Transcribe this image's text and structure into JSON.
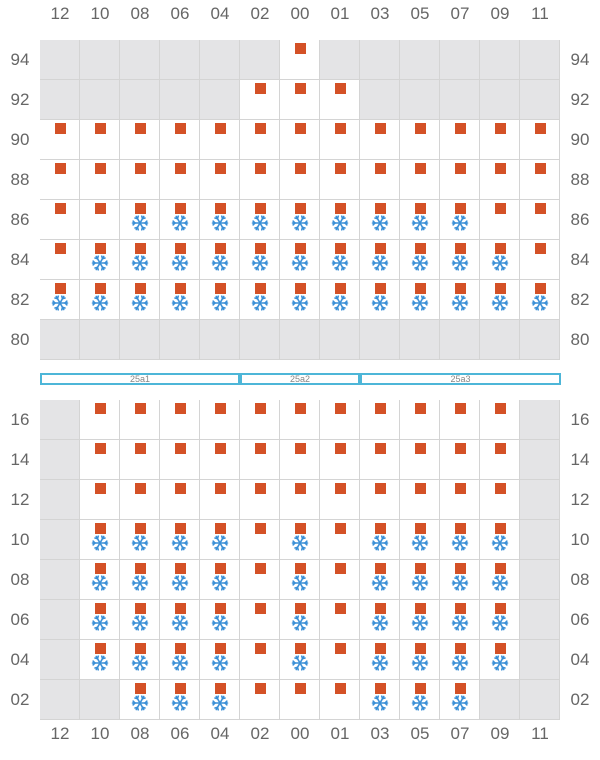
{
  "columns": [
    "12",
    "10",
    "08",
    "06",
    "04",
    "02",
    "00",
    "01",
    "03",
    "05",
    "07",
    "09",
    "11"
  ],
  "zones": [
    {
      "label": "25a1",
      "from_col": 0,
      "to_col": 5
    },
    {
      "label": "25a2",
      "from_col": 5,
      "to_col": 8
    },
    {
      "label": "25a3",
      "from_col": 8,
      "to_col": 13
    }
  ],
  "colors": {
    "square": "#d45126",
    "snowflake": "#3a8fd6",
    "gray_cell": "#e4e4e6",
    "zone_border": "#4db6d8"
  },
  "icons": {
    "marker": "orange-square-icon",
    "cold": "snowflake-icon"
  },
  "upper_block": {
    "rows": [
      {
        "label": "94",
        "cells": [
          "g",
          "g",
          "g",
          "g",
          "g",
          "g",
          "s",
          "g",
          "g",
          "g",
          "g",
          "g",
          "g"
        ]
      },
      {
        "label": "92",
        "cells": [
          "g",
          "g",
          "g",
          "g",
          "g",
          "s",
          "s",
          "s",
          "g",
          "g",
          "g",
          "g",
          "g"
        ]
      },
      {
        "label": "90",
        "cells": [
          "s",
          "s",
          "s",
          "s",
          "s",
          "s",
          "s",
          "s",
          "s",
          "s",
          "s",
          "s",
          "s"
        ]
      },
      {
        "label": "88",
        "cells": [
          "s",
          "s",
          "s",
          "s",
          "s",
          "s",
          "s",
          "s",
          "s",
          "s",
          "s",
          "s",
          "s"
        ]
      },
      {
        "label": "86",
        "cells": [
          "s",
          "s",
          "sf",
          "sf",
          "sf",
          "sf",
          "sf",
          "sf",
          "sf",
          "sf",
          "sf",
          "s",
          "s"
        ]
      },
      {
        "label": "84",
        "cells": [
          "s",
          "sf",
          "sf",
          "sf",
          "sf",
          "sf",
          "sf",
          "sf",
          "sf",
          "sf",
          "sf",
          "sf",
          "s"
        ]
      },
      {
        "label": "82",
        "cells": [
          "sf",
          "sf",
          "sf",
          "sf",
          "sf",
          "sf",
          "sf",
          "sf",
          "sf",
          "sf",
          "sf",
          "sf",
          "sf"
        ]
      },
      {
        "label": "80",
        "cells": [
          "g",
          "g",
          "g",
          "g",
          "g",
          "g",
          "g",
          "g",
          "g",
          "g",
          "g",
          "g",
          "g"
        ]
      }
    ]
  },
  "lower_block": {
    "rows": [
      {
        "label": "16",
        "cells": [
          "g",
          "s",
          "s",
          "s",
          "s",
          "s",
          "s",
          "s",
          "s",
          "s",
          "s",
          "s",
          "g"
        ]
      },
      {
        "label": "14",
        "cells": [
          "g",
          "s",
          "s",
          "s",
          "s",
          "s",
          "s",
          "s",
          "s",
          "s",
          "s",
          "s",
          "g"
        ]
      },
      {
        "label": "12",
        "cells": [
          "g",
          "s",
          "s",
          "s",
          "s",
          "s",
          "s",
          "s",
          "s",
          "s",
          "s",
          "s",
          "g"
        ]
      },
      {
        "label": "10",
        "cells": [
          "g",
          "sf",
          "sf",
          "sf",
          "sf",
          "s",
          "sf",
          "s",
          "sf",
          "sf",
          "sf",
          "sf",
          "g"
        ]
      },
      {
        "label": "08",
        "cells": [
          "g",
          "sf",
          "sf",
          "sf",
          "sf",
          "s",
          "sf",
          "s",
          "sf",
          "sf",
          "sf",
          "sf",
          "g"
        ]
      },
      {
        "label": "06",
        "cells": [
          "g",
          "sf",
          "sf",
          "sf",
          "sf",
          "s",
          "sf",
          "s",
          "sf",
          "sf",
          "sf",
          "sf",
          "g"
        ]
      },
      {
        "label": "04",
        "cells": [
          "g",
          "sf",
          "sf",
          "sf",
          "sf",
          "s",
          "sf",
          "s",
          "sf",
          "sf",
          "sf",
          "sf",
          "g"
        ]
      },
      {
        "label": "02",
        "cells": [
          "g",
          "g",
          "sf",
          "sf",
          "sf",
          "s",
          "s",
          "s",
          "sf",
          "sf",
          "sf",
          "g",
          "g"
        ]
      }
    ]
  }
}
